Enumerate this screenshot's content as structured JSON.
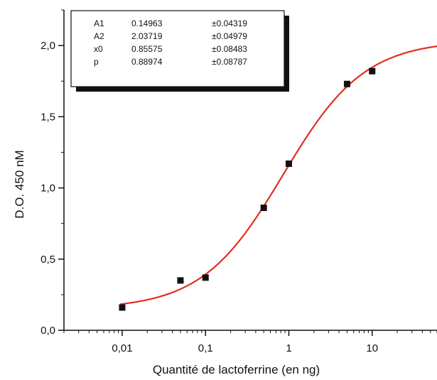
{
  "chart_data": {
    "type": "scatter",
    "title": "",
    "xlabel": "Quantité de lactoferrine (en ng)",
    "ylabel": "D.O. 450 nM",
    "xscale": "log",
    "xlim": [
      0.002,
      60
    ],
    "ylim": [
      0,
      2.25
    ],
    "x_ticks": [
      {
        "value": 0.01,
        "label": "0,01"
      },
      {
        "value": 0.1,
        "label": "0,1"
      },
      {
        "value": 1,
        "label": "1"
      },
      {
        "value": 10,
        "label": "10"
      }
    ],
    "y_ticks": [
      {
        "value": 0.0,
        "label": "0,0"
      },
      {
        "value": 0.5,
        "label": "0,5"
      },
      {
        "value": 1.0,
        "label": "1,0"
      },
      {
        "value": 1.5,
        "label": "1,5"
      },
      {
        "value": 2.0,
        "label": "2,0"
      }
    ],
    "points": [
      {
        "x": 0.01,
        "y": 0.16
      },
      {
        "x": 0.05,
        "y": 0.35
      },
      {
        "x": 0.1,
        "y": 0.37
      },
      {
        "x": 0.5,
        "y": 0.86
      },
      {
        "x": 1,
        "y": 1.17
      },
      {
        "x": 5,
        "y": 1.73
      },
      {
        "x": 10,
        "y": 1.82
      }
    ],
    "fit": {
      "model": "logistic",
      "A1": 0.14963,
      "A2": 2.03719,
      "x0": 0.85575,
      "p": 0.88974,
      "color": "#e0301e"
    },
    "parameter_table": [
      {
        "name": "A1",
        "value": "0.14963",
        "error": "±0.04319"
      },
      {
        "name": "A2",
        "value": "2.03719",
        "error": "±0.04979"
      },
      {
        "name": "x0",
        "value": "0.85575",
        "error": "±0.08483"
      },
      {
        "name": "p",
        "value": "0.88974",
        "error": "±0.08787"
      }
    ],
    "parameter_table_position": "top-left",
    "grid": false,
    "marker_color": "#111111"
  }
}
